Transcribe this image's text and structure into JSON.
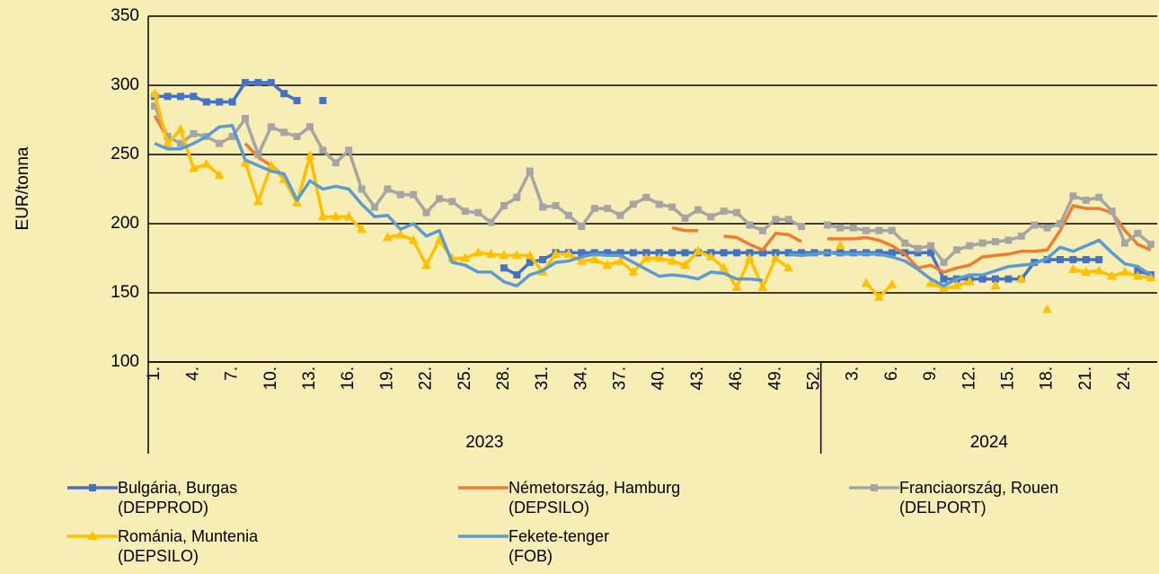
{
  "chart_data": {
    "type": "line",
    "y_label": "EUR/tonna",
    "ylim": [
      100,
      350
    ],
    "yticks": [
      100,
      150,
      200,
      250,
      300,
      350
    ],
    "grid": true,
    "legend": "bottom",
    "categories": [
      "1.",
      null,
      null,
      "4.",
      null,
      null,
      "7.",
      null,
      null,
      "10.",
      null,
      null,
      "13.",
      null,
      null,
      "16.",
      null,
      null,
      "19.",
      null,
      null,
      "22.",
      null,
      null,
      "25.",
      null,
      null,
      "28.",
      null,
      null,
      "31.",
      null,
      null,
      "34.",
      null,
      null,
      "37.",
      null,
      null,
      "40.",
      null,
      null,
      "43.",
      null,
      null,
      "46.",
      null,
      null,
      "49.",
      null,
      null,
      "52.",
      null,
      null,
      "3.",
      null,
      null,
      "6.",
      null,
      null,
      "9.",
      null,
      null,
      "12.",
      null,
      null,
      "15.",
      null,
      null,
      "18.",
      null,
      null,
      "21.",
      null,
      null,
      "24.",
      null,
      null
    ],
    "groups": [
      {
        "label": "2023",
        "count": 52
      },
      {
        "label": "2024",
        "count": 26
      }
    ],
    "series": [
      {
        "name": "Bulgária, Burgas\n(DEPPROD)",
        "color": "#4472c4",
        "marker": "square",
        "values": [
          292,
          292,
          292,
          292,
          288,
          288,
          288,
          302,
          302,
          302,
          294,
          289,
          null,
          289,
          null,
          null,
          null,
          null,
          null,
          null,
          null,
          null,
          null,
          null,
          null,
          null,
          null,
          168,
          163,
          172,
          174,
          179,
          179,
          179,
          179,
          179,
          179,
          179,
          179,
          179,
          179,
          179,
          179,
          179,
          179,
          179,
          179,
          179,
          179,
          179,
          179,
          179,
          179,
          179,
          179,
          179,
          179,
          179,
          179,
          179,
          179,
          160,
          160,
          160,
          160,
          160,
          160,
          160,
          172,
          174,
          174,
          174,
          174,
          174,
          null,
          null,
          166,
          163
        ]
      },
      {
        "name": "Németország, Hamburg\n(DEPSILO)",
        "color": "#ed7d31",
        "marker": "none",
        "values": [
          278,
          262,
          null,
          null,
          null,
          null,
          null,
          258,
          248,
          242,
          234,
          null,
          null,
          null,
          null,
          null,
          null,
          null,
          null,
          null,
          null,
          null,
          null,
          null,
          null,
          null,
          null,
          null,
          null,
          null,
          null,
          null,
          null,
          null,
          null,
          null,
          null,
          null,
          null,
          null,
          197,
          195,
          195,
          null,
          191,
          190,
          185,
          181,
          193,
          192,
          187,
          null,
          189,
          189,
          189,
          190,
          188,
          184,
          178,
          168,
          170,
          165,
          168,
          170,
          176,
          177,
          178,
          180,
          180,
          181,
          195,
          213,
          211,
          211,
          208,
          195,
          185,
          181
        ]
      },
      {
        "name": "Franciaország, Rouen\n(DELPORT)",
        "color": "#a5a5a5",
        "marker": "square",
        "values": [
          285,
          263,
          258,
          265,
          263,
          258,
          263,
          276,
          250,
          270,
          266,
          263,
          270,
          253,
          244,
          253,
          225,
          212,
          225,
          221,
          221,
          208,
          218,
          216,
          209,
          208,
          201,
          213,
          219,
          238,
          212,
          213,
          206,
          198,
          211,
          211,
          206,
          214,
          219,
          214,
          212,
          204,
          210,
          205,
          209,
          208,
          199,
          195,
          203,
          203,
          198,
          null,
          199,
          197,
          197,
          195,
          195,
          195,
          186,
          182,
          184,
          172,
          181,
          184,
          186,
          187,
          188,
          191,
          199,
          197,
          200,
          220,
          217,
          219,
          209,
          186,
          193,
          185
        ]
      },
      {
        "name": "Románia, Muntenia\n(DEPSILO)",
        "color": "#ffc000",
        "marker": "triangle",
        "values": [
          294,
          258,
          268,
          240,
          243,
          235,
          null,
          244,
          216,
          242,
          232,
          215,
          249,
          205,
          205,
          205,
          196,
          null,
          190,
          192,
          188,
          170,
          188,
          175,
          175,
          179,
          178,
          177,
          177,
          177,
          165,
          178,
          178,
          173,
          174,
          170,
          173,
          165,
          175,
          175,
          173,
          170,
          180,
          176,
          168,
          154,
          175,
          154,
          175,
          168,
          null,
          null,
          null,
          184,
          null,
          157,
          147,
          156,
          null,
          null,
          157,
          153,
          155,
          158,
          null,
          155,
          null,
          160,
          null,
          138,
          null,
          167,
          165,
          166,
          162,
          165,
          162,
          161
        ]
      },
      {
        "name": "Fekete-tenger\n(FOB)",
        "color": "#5b9bd5",
        "marker": "none",
        "values": [
          258,
          254,
          254,
          258,
          263,
          270,
          271,
          246,
          242,
          238,
          236,
          217,
          231,
          225,
          227,
          225,
          214,
          205,
          206,
          196,
          200,
          191,
          195,
          172,
          170,
          165,
          165,
          158,
          155,
          163,
          166,
          172,
          173,
          176,
          178,
          177,
          177,
          172,
          167,
          162,
          163,
          162,
          160,
          165,
          164,
          160,
          160,
          159,
          null,
          178,
          177,
          178,
          179,
          178,
          178,
          178,
          178,
          176,
          173,
          167,
          160,
          155,
          160,
          163,
          163,
          166,
          169,
          170,
          171,
          175,
          183,
          180,
          184,
          188,
          179,
          171,
          169,
          163
        ]
      }
    ]
  }
}
